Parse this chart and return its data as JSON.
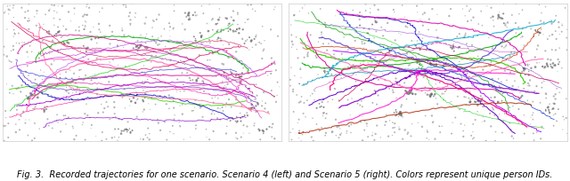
{
  "caption": "Fig. 3.  Recorded trajectories for one scenario. Scenario 4 (left) and Scenario 5 (right). Colors represent unique person IDs.",
  "background_color": "#ffffff",
  "fig_width": 6.4,
  "fig_height": 2.04,
  "panel_bg": "#ffffff",
  "caption_fontsize": 7.0,
  "trajectory_colors_left": [
    "#ff69b4",
    "#cc0055",
    "#ff0080",
    "#dd0099",
    "#00aa00",
    "#00cc00",
    "#33cc00",
    "#0000cc",
    "#4444dd",
    "#6633cc",
    "#cc00cc",
    "#aa00cc",
    "#990099",
    "#ff4488",
    "#cc3399",
    "#ff00aa",
    "#dd44aa",
    "#8800cc",
    "#aa44ff",
    "#ff6699",
    "#cc0044"
  ],
  "trajectory_colors_right": [
    "#00aa00",
    "#00cc00",
    "#33cc00",
    "#009900",
    "#8800cc",
    "#6600cc",
    "#aa00ff",
    "#7722cc",
    "#cc0055",
    "#ff0080",
    "#dd0099",
    "#ff69b4",
    "#0000cc",
    "#2244dd",
    "#5533cc",
    "#00aacc",
    "#0088aa",
    "#cc3300",
    "#aa2200",
    "#ff00cc",
    "#dd00aa",
    "#cc44bb"
  ],
  "num_noise_points": 600
}
